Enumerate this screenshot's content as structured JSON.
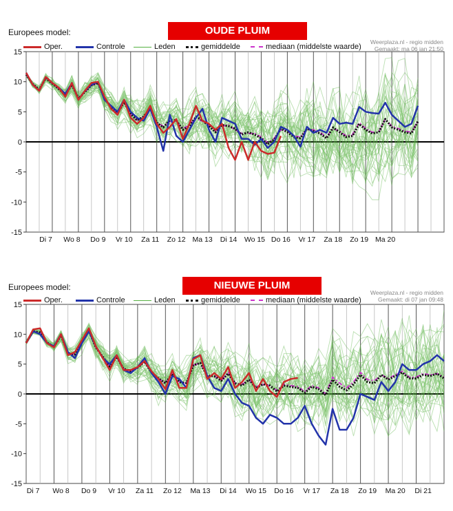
{
  "panels": [
    {
      "model_label": "Europees model:",
      "banner": "OUDE PLUIM",
      "credit_line1": "Weerplaza.nl - regio midden",
      "credit_line2": "Gemaakt: ma 06 jan 21:50",
      "legend": {
        "oper": "Oper.",
        "controle": "Controle",
        "leden": "Leden",
        "gemiddelde": "gemiddelde",
        "mediaan": "mediaan (middelste waarde)"
      }
    },
    {
      "model_label": "Europees model:",
      "banner": "NIEUWE PLUIM",
      "credit_line1": "Weerplaza.nl - regio midden",
      "credit_line2": "Gemaakt: di 07 jan 09:48",
      "legend": {
        "oper": "Oper.",
        "controle": "Controle",
        "leden": "Leden",
        "gemiddelde": "gemiddelde",
        "mediaan": "mediaan (middelste waarde)"
      }
    }
  ],
  "colors": {
    "oper": "#cc2a2a",
    "controle": "#2233aa",
    "leden": "#55b040",
    "gemiddelde": "#111111",
    "mediaan": "#cc33cc",
    "banner": "#e60000"
  },
  "chart_data": [
    {
      "type": "line",
      "ylim": [
        -15,
        15
      ],
      "yticks": [
        15,
        10,
        5,
        0,
        -5,
        -10,
        -15
      ],
      "xlim": [
        0,
        16
      ],
      "day_labels": [
        "Di 7",
        "Wo 8",
        "Do 9",
        "Vr 10",
        "Za 11",
        "Zo 12",
        "Ma 13",
        "Di 14",
        "Wo 15",
        "Do 16",
        "Vr 17",
        "Za 18",
        "Zo 19",
        "Ma 20"
      ],
      "day_label_x": [
        0.75,
        1.75,
        2.75,
        3.75,
        4.75,
        5.75,
        6.75,
        7.75,
        8.75,
        9.75,
        10.75,
        11.75,
        12.75,
        13.75
      ],
      "series": [
        {
          "name": "Oper.",
          "key": "oper",
          "x": [
            0,
            0.25,
            0.5,
            0.75,
            1,
            1.25,
            1.5,
            1.75,
            2,
            2.25,
            2.5,
            2.75,
            3,
            3.25,
            3.5,
            3.75,
            4,
            4.25,
            4.5,
            4.75,
            5,
            5.25,
            5.5,
            5.75,
            6,
            6.25,
            6.5,
            6.75,
            7,
            7.25,
            7.5,
            7.75,
            8,
            8.25,
            8.5,
            8.75,
            9,
            9.25,
            9.5,
            9.75
          ],
          "y": [
            11.5,
            9.5,
            8.5,
            10.8,
            9.8,
            9,
            7.5,
            9.8,
            7,
            8.5,
            9.8,
            10,
            7.5,
            5.5,
            4.5,
            7,
            4,
            3,
            4,
            6,
            3,
            1.5,
            2.5,
            3.8,
            0.5,
            3,
            6,
            3.5,
            3,
            2,
            3,
            -1,
            -3,
            0,
            -3,
            0,
            -1.5,
            -2,
            -1.8,
            1
          ]
        },
        {
          "name": "Controle",
          "key": "controle",
          "x": [
            0,
            0.25,
            0.5,
            0.75,
            1,
            1.25,
            1.5,
            1.75,
            2,
            2.25,
            2.5,
            2.75,
            3,
            3.25,
            3.5,
            3.75,
            4,
            4.25,
            4.5,
            4.75,
            5,
            5.25,
            5.5,
            5.75,
            6,
            6.25,
            6.5,
            6.75,
            7,
            7.25,
            7.5,
            7.75,
            8,
            8.25,
            8.5,
            8.75,
            9,
            9.25,
            9.5,
            9.75,
            10,
            10.25,
            10.5,
            10.75,
            11,
            11.25,
            11.5,
            11.75,
            12,
            12.25,
            12.5,
            12.75,
            13,
            13.25,
            13.5,
            13.75,
            14,
            14.25,
            14.5,
            14.75,
            15
          ],
          "y": [
            11.5,
            9.5,
            8.5,
            10.8,
            9.8,
            9,
            8,
            9.8,
            7,
            8.5,
            9.5,
            10,
            7,
            6,
            5,
            7,
            5,
            4,
            3.5,
            5.5,
            2.5,
            -1.5,
            4.5,
            1,
            0,
            2,
            4,
            5.5,
            2,
            0,
            4,
            3.5,
            3,
            0.5,
            0.5,
            -0.5,
            0.5,
            -1,
            0,
            2.5,
            2,
            1,
            -0.8,
            2.5,
            1.5,
            2,
            1.5,
            4,
            3,
            3.2,
            3,
            5.8,
            5,
            4.8,
            4.7,
            6.5,
            4.5,
            3.5,
            2.5,
            3,
            6
          ]
        },
        {
          "name": "gemiddelde",
          "key": "gemiddelde",
          "x": [
            0,
            0.25,
            0.5,
            0.75,
            1,
            1.25,
            1.5,
            1.75,
            2,
            2.25,
            2.5,
            2.75,
            3,
            3.25,
            3.5,
            3.75,
            4,
            4.25,
            4.5,
            4.75,
            5,
            5.25,
            5.5,
            5.75,
            6,
            6.25,
            6.5,
            6.75,
            7,
            7.25,
            7.5,
            7.75,
            8,
            8.25,
            8.5,
            8.75,
            9,
            9.25,
            9.5,
            9.75,
            10,
            10.25,
            10.5,
            10.75,
            11,
            11.25,
            11.5,
            11.75,
            12,
            12.25,
            12.5,
            12.75,
            13,
            13.25,
            13.5,
            13.75,
            14,
            14.25,
            14.5,
            14.75,
            15
          ],
          "y": [
            11.2,
            9.6,
            8.7,
            10.6,
            9.7,
            8.8,
            7.8,
            9.5,
            7.2,
            8.3,
            9.4,
            9.8,
            7.2,
            5.8,
            4.8,
            6.6,
            4.6,
            3.6,
            4.2,
            5.6,
            3.2,
            2.4,
            3.6,
            3.6,
            2,
            2.6,
            4.2,
            3.6,
            2.6,
            1.6,
            2.8,
            2.6,
            2.2,
            1.2,
            1.6,
            1.2,
            0.6,
            -0.4,
            0.4,
            2.2,
            1.6,
            0.8,
            0.6,
            2.2,
            1.8,
            1.4,
            0.6,
            2.4,
            1.6,
            0.8,
            1,
            3,
            2,
            1.4,
            1.6,
            3.8,
            2.4,
            2,
            1.6,
            1.4,
            3.4
          ]
        },
        {
          "name": "mediaan (middelste waarde)",
          "key": "mediaan",
          "x": [
            0,
            0.25,
            0.5,
            0.75,
            1,
            1.25,
            1.5,
            1.75,
            2,
            2.25,
            2.5,
            2.75,
            3,
            3.25,
            3.5,
            3.75,
            4,
            4.25,
            4.5,
            4.75,
            5,
            5.25,
            5.5,
            5.75,
            6,
            6.25,
            6.5,
            6.75,
            7,
            7.25,
            7.5,
            7.75,
            8,
            8.25,
            8.5,
            8.75,
            9,
            9.25,
            9.5,
            9.75,
            10,
            10.25,
            10.5,
            10.75,
            11,
            11.25,
            11.5,
            11.75,
            12,
            12.25,
            12.5,
            12.75,
            13,
            13.25,
            13.5,
            13.75,
            14,
            14.25,
            14.5,
            14.75,
            15
          ],
          "y": [
            11.2,
            9.6,
            8.7,
            10.6,
            9.7,
            8.8,
            7.8,
            9.5,
            7.2,
            8.3,
            9.4,
            9.8,
            7.2,
            5.8,
            4.8,
            6.6,
            4.6,
            3.6,
            4.2,
            5.6,
            3.2,
            2.6,
            3.4,
            3.4,
            2.2,
            2.8,
            4,
            3.4,
            2.8,
            1.8,
            2.6,
            2.8,
            2,
            1.4,
            1.4,
            1.4,
            0.8,
            -0.2,
            0.6,
            2,
            1.8,
            1,
            0.8,
            2,
            2,
            1.6,
            0.8,
            2.2,
            1.8,
            1,
            1.2,
            3.2,
            2.2,
            1.6,
            1.6,
            3.8,
            2.6,
            2.2,
            1.8,
            1.6,
            3.4
          ]
        }
      ]
    },
    {
      "type": "line",
      "ylim": [
        -15,
        15
      ],
      "yticks": [
        15,
        10,
        5,
        0,
        -5,
        -10,
        -15
      ],
      "xlim": [
        0,
        15
      ],
      "day_labels": [
        "Di 7",
        "Wo 8",
        "Do 9",
        "Vr 10",
        "Za 11",
        "Zo 12",
        "Ma 13",
        "Di 14",
        "Wo 15",
        "Do 16",
        "Vr 17",
        "Za 18",
        "Zo 19",
        "Ma 20",
        "Di 21"
      ],
      "day_label_x": [
        0.25,
        1.25,
        2.25,
        3.25,
        4.25,
        5.25,
        6.25,
        7.25,
        8.25,
        9.25,
        10.25,
        11.25,
        12.25,
        13.25,
        14.25
      ],
      "series": [
        {
          "name": "Oper.",
          "key": "oper",
          "x": [
            0,
            0.25,
            0.5,
            0.75,
            1,
            1.25,
            1.5,
            1.75,
            2,
            2.25,
            2.5,
            2.75,
            3,
            3.25,
            3.5,
            3.75,
            4,
            4.25,
            4.5,
            4.75,
            5,
            5.25,
            5.5,
            5.75,
            6,
            6.25,
            6.5,
            6.75,
            7,
            7.25,
            7.5,
            7.75,
            8,
            8.25,
            8.5,
            8.75,
            9,
            9.25,
            9.5,
            9.75
          ],
          "y": [
            8.5,
            10.8,
            11,
            8.5,
            7.8,
            10,
            6.5,
            7,
            9,
            11,
            8,
            6,
            4,
            6.5,
            4,
            4,
            4.5,
            5.5,
            3.8,
            2.5,
            0.8,
            4,
            1,
            1,
            5.8,
            6.5,
            2.5,
            3.5,
            2.5,
            4.5,
            1,
            2,
            3.5,
            0.5,
            2.5,
            0.5,
            -0.5,
            2,
            2.5,
            2.7
          ]
        },
        {
          "name": "Controle",
          "key": "controle",
          "x": [
            0,
            0.25,
            0.5,
            0.75,
            1,
            1.25,
            1.5,
            1.75,
            2,
            2.25,
            2.5,
            2.75,
            3,
            3.25,
            3.5,
            3.75,
            4,
            4.25,
            4.5,
            4.75,
            5,
            5.25,
            5.5,
            5.75,
            6,
            6.25,
            6.5,
            6.75,
            7,
            7.25,
            7.5,
            7.75,
            8,
            8.25,
            8.5,
            8.75,
            9,
            9.25,
            9.5,
            9.75,
            10,
            10.25,
            10.5,
            10.75,
            11,
            11.25,
            11.5,
            11.75,
            12,
            12.25,
            12.5,
            12.75,
            13,
            13.25,
            13.5,
            13.75,
            14,
            14.25,
            14.5,
            14.75,
            15
          ],
          "y": [
            8.5,
            10.5,
            10,
            8.5,
            8,
            10,
            7,
            6,
            8.5,
            10.5,
            8,
            6,
            5,
            6.5,
            4,
            3.5,
            4.5,
            6,
            3.5,
            2,
            0,
            3,
            2.5,
            1,
            6,
            6.5,
            3,
            1,
            0.5,
            2.5,
            0,
            -1.5,
            -2,
            -4,
            -5,
            -3.5,
            -4,
            -5,
            -5,
            -4,
            -2,
            -5,
            -7,
            -8.5,
            -2.5,
            -6,
            -6,
            -4,
            0,
            -0.5,
            -1,
            2,
            0.5,
            2,
            5,
            4,
            4,
            5,
            5.5,
            6.5,
            5.5
          ]
        },
        {
          "name": "gemiddelde",
          "key": "gemiddelde",
          "x": [
            0,
            0.25,
            0.5,
            0.75,
            1,
            1.25,
            1.5,
            1.75,
            2,
            2.25,
            2.5,
            2.75,
            3,
            3.25,
            3.5,
            3.75,
            4,
            4.25,
            4.5,
            4.75,
            5,
            5.25,
            5.5,
            5.75,
            6,
            6.25,
            6.5,
            6.75,
            7,
            7.25,
            7.5,
            7.75,
            8,
            8.25,
            8.5,
            8.75,
            9,
            9.25,
            9.5,
            9.75,
            10,
            10.25,
            10.5,
            10.75,
            11,
            11.25,
            11.5,
            11.75,
            12,
            12.25,
            12.5,
            12.75,
            13,
            13.25,
            13.5,
            13.75,
            14,
            14.25,
            14.5,
            14.75,
            15
          ],
          "y": [
            8.6,
            10.5,
            10.3,
            8.6,
            7.9,
            9.8,
            6.8,
            6.6,
            8.7,
            10.6,
            7.8,
            6.2,
            4.6,
            6.2,
            4.2,
            3.8,
            4.4,
            5.4,
            3.6,
            2.6,
            1.8,
            3.4,
            2,
            1.8,
            4.8,
            5.2,
            3,
            3,
            2.2,
            3.4,
            1.8,
            1.4,
            2.4,
            1,
            1.6,
            1.4,
            0.4,
            1.4,
            1.2,
            1,
            0.2,
            1.2,
            0.8,
            -0.2,
            2.4,
            1.2,
            0.6,
            1.6,
            3.2,
            2,
            1.8,
            3.2,
            2.4,
            3,
            3.6,
            2.6,
            2.6,
            3.2,
            3,
            3.4,
            2.6
          ]
        },
        {
          "name": "mediaan (middelste waarde)",
          "key": "mediaan",
          "x": [
            0,
            0.25,
            0.5,
            0.75,
            1,
            1.25,
            1.5,
            1.75,
            2,
            2.25,
            2.5,
            2.75,
            3,
            3.25,
            3.5,
            3.75,
            4,
            4.25,
            4.5,
            4.75,
            5,
            5.25,
            5.5,
            5.75,
            6,
            6.25,
            6.5,
            6.75,
            7,
            7.25,
            7.5,
            7.75,
            8,
            8.25,
            8.5,
            8.75,
            9,
            9.25,
            9.5,
            9.75,
            10,
            10.25,
            10.5,
            10.75,
            11,
            11.25,
            11.5,
            11.75,
            12,
            12.25,
            12.5,
            12.75,
            13,
            13.25,
            13.5,
            13.75,
            14,
            14.25,
            14.5,
            14.75,
            15
          ],
          "y": [
            8.6,
            10.5,
            10.3,
            8.6,
            7.9,
            9.8,
            6.8,
            6.6,
            8.7,
            10.6,
            7.8,
            6.2,
            4.6,
            6.2,
            4.2,
            3.8,
            4.4,
            5.4,
            3.6,
            2.6,
            1.8,
            3.4,
            2,
            1.8,
            4.8,
            5.2,
            3,
            3,
            2.2,
            3.6,
            1.8,
            1.6,
            2.4,
            1.2,
            1.6,
            1.4,
            0.6,
            1.6,
            1.4,
            1.2,
            0.4,
            1.4,
            1,
            0,
            2.8,
            1.8,
            1,
            2,
            3.6,
            2.4,
            2.2,
            3.2,
            2.6,
            3.2,
            3.8,
            2.8,
            2.8,
            3.4,
            3.2,
            3.4,
            2.8
          ]
        }
      ]
    }
  ]
}
